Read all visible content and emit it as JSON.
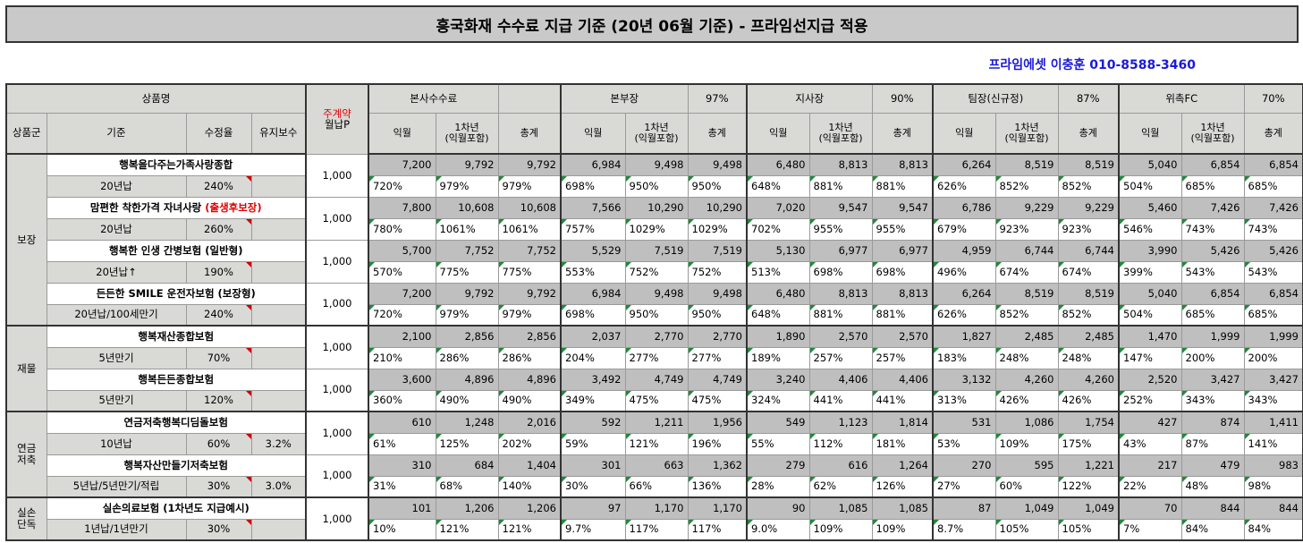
{
  "title": "흥국화재 수수료 지급 기준 (20년 06월 기준) - 프라임선지급 적용",
  "contact": "프라임에셋 이충훈 010-8588-3460",
  "header": {
    "product_name": "상품명",
    "main_contract_1": "주계약",
    "main_contract_2": "월납P",
    "col_group": "상품군",
    "col_basis": "기준",
    "col_rate": "수정율",
    "col_keep": "유지보수",
    "groups": [
      {
        "name": "본사수수료",
        "pct": ""
      },
      {
        "name": "본부장",
        "pct": "97%"
      },
      {
        "name": "지사장",
        "pct": "90%"
      },
      {
        "name": "팀장(신규정)",
        "pct": "87%"
      },
      {
        "name": "위촉FC",
        "pct": "70%"
      }
    ],
    "sub": [
      "익월",
      "1차년\n(익월포함)",
      "총계"
    ]
  },
  "categories": [
    {
      "name": "보장"
    },
    {
      "name": "재물"
    },
    {
      "name": "연금\n저축"
    },
    {
      "name": "실손\n단독"
    }
  ],
  "products": [
    {
      "name": "행복을다주는가족사랑종합",
      "red": "",
      "basis": "20년납",
      "rate": "240%",
      "keep": "",
      "prem": "1,000",
      "amt": [
        "7,200",
        "9,792",
        "9,792",
        "6,984",
        "9,498",
        "9,498",
        "6,480",
        "8,813",
        "8,813",
        "6,264",
        "8,519",
        "8,519",
        "5,040",
        "6,854",
        "6,854"
      ],
      "pct": [
        "720%",
        "979%",
        "979%",
        "698%",
        "950%",
        "950%",
        "648%",
        "881%",
        "881%",
        "626%",
        "852%",
        "852%",
        "504%",
        "685%",
        "685%"
      ]
    },
    {
      "name": "맘편한 착한가격 자녀사랑 ",
      "red": "(출생후보장)",
      "basis": "20년납",
      "rate": "260%",
      "keep": "",
      "prem": "1,000",
      "amt": [
        "7,800",
        "10,608",
        "10,608",
        "7,566",
        "10,290",
        "10,290",
        "7,020",
        "9,547",
        "9,547",
        "6,786",
        "9,229",
        "9,229",
        "5,460",
        "7,426",
        "7,426"
      ],
      "pct": [
        "780%",
        "1061%",
        "1061%",
        "757%",
        "1029%",
        "1029%",
        "702%",
        "955%",
        "955%",
        "679%",
        "923%",
        "923%",
        "546%",
        "743%",
        "743%"
      ]
    },
    {
      "name": "행복한 인생 간병보험 (일반형)",
      "red": "",
      "basis": "20년납↑",
      "rate": "190%",
      "keep": "",
      "prem": "1,000",
      "amt": [
        "5,700",
        "7,752",
        "7,752",
        "5,529",
        "7,519",
        "7,519",
        "5,130",
        "6,977",
        "6,977",
        "4,959",
        "6,744",
        "6,744",
        "3,990",
        "5,426",
        "5,426"
      ],
      "pct": [
        "570%",
        "775%",
        "775%",
        "553%",
        "752%",
        "752%",
        "513%",
        "698%",
        "698%",
        "496%",
        "674%",
        "674%",
        "399%",
        "543%",
        "543%"
      ]
    },
    {
      "name": "든든한 SMILE 운전자보험 (보장형)",
      "red": "",
      "basis": "20년납/100세만기",
      "rate": "240%",
      "keep": "",
      "prem": "1,000",
      "amt": [
        "7,200",
        "9,792",
        "9,792",
        "6,984",
        "9,498",
        "9,498",
        "6,480",
        "8,813",
        "8,813",
        "6,264",
        "8,519",
        "8,519",
        "5,040",
        "6,854",
        "6,854"
      ],
      "pct": [
        "720%",
        "979%",
        "979%",
        "698%",
        "950%",
        "950%",
        "648%",
        "881%",
        "881%",
        "626%",
        "852%",
        "852%",
        "504%",
        "685%",
        "685%"
      ]
    },
    {
      "name": "행복재산종합보험",
      "red": "",
      "basis": "5년만기",
      "rate": "70%",
      "keep": "",
      "prem": "1,000",
      "amt": [
        "2,100",
        "2,856",
        "2,856",
        "2,037",
        "2,770",
        "2,770",
        "1,890",
        "2,570",
        "2,570",
        "1,827",
        "2,485",
        "2,485",
        "1,470",
        "1,999",
        "1,999"
      ],
      "pct": [
        "210%",
        "286%",
        "286%",
        "204%",
        "277%",
        "277%",
        "189%",
        "257%",
        "257%",
        "183%",
        "248%",
        "248%",
        "147%",
        "200%",
        "200%"
      ]
    },
    {
      "name": "행복든든종합보험",
      "red": "",
      "basis": "5년만기",
      "rate": "120%",
      "keep": "",
      "prem": "1,000",
      "amt": [
        "3,600",
        "4,896",
        "4,896",
        "3,492",
        "4,749",
        "4,749",
        "3,240",
        "4,406",
        "4,406",
        "3,132",
        "4,260",
        "4,260",
        "2,520",
        "3,427",
        "3,427"
      ],
      "pct": [
        "360%",
        "490%",
        "490%",
        "349%",
        "475%",
        "475%",
        "324%",
        "441%",
        "441%",
        "313%",
        "426%",
        "426%",
        "252%",
        "343%",
        "343%"
      ]
    },
    {
      "name": "연금저축행복디딤돌보험",
      "red": "",
      "basis": "10년납",
      "rate": "60%",
      "keep": "3.2%",
      "prem": "1,000",
      "amt": [
        "610",
        "1,248",
        "2,016",
        "592",
        "1,211",
        "1,956",
        "549",
        "1,123",
        "1,814",
        "531",
        "1,086",
        "1,754",
        "427",
        "874",
        "1,411"
      ],
      "pct": [
        "61%",
        "125%",
        "202%",
        "59%",
        "121%",
        "196%",
        "55%",
        "112%",
        "181%",
        "53%",
        "109%",
        "175%",
        "43%",
        "87%",
        "141%"
      ]
    },
    {
      "name": "행복자산만들기저축보험",
      "red": "",
      "basis": "5년납/5년만기/적립",
      "rate": "30%",
      "keep": "3.0%",
      "prem": "1,000",
      "amt": [
        "310",
        "684",
        "1,404",
        "301",
        "663",
        "1,362",
        "279",
        "616",
        "1,264",
        "270",
        "595",
        "1,221",
        "217",
        "479",
        "983"
      ],
      "pct": [
        "31%",
        "68%",
        "140%",
        "30%",
        "66%",
        "136%",
        "28%",
        "62%",
        "126%",
        "27%",
        "60%",
        "122%",
        "22%",
        "48%",
        "98%"
      ]
    },
    {
      "name": "실손의료보험 (1차년도 지급예시)",
      "red": "",
      "basis": "1년납/1년만기",
      "rate": "30%",
      "keep": "",
      "prem": "1,000",
      "amt": [
        "101",
        "1,206",
        "1,206",
        "97",
        "1,170",
        "1,170",
        "90",
        "1,085",
        "1,085",
        "87",
        "1,049",
        "1,049",
        "70",
        "844",
        "844"
      ],
      "pct": [
        "10%",
        "121%",
        "121%",
        "9.7%",
        "117%",
        "117%",
        "9.0%",
        "109%",
        "109%",
        "8.7%",
        "105%",
        "105%",
        "7%",
        "84%",
        "84%"
      ]
    }
  ]
}
